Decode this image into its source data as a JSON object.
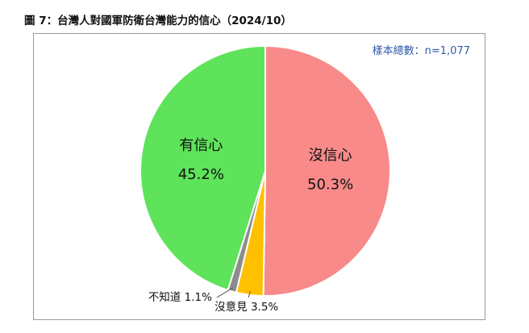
{
  "title": "圖 7：台灣人對國軍防衛台灣能力的信心（2024/10）",
  "sample_note": "樣本總數：n=1,077",
  "chart_data": {
    "type": "pie",
    "title": "圖 7：台灣人對國軍防衛台灣能力的信心（2024/10）",
    "start": "12 o'clock",
    "direction": "clockwise",
    "slices": [
      {
        "name": "沒信心",
        "value": 50.3,
        "value_label": "50.3%",
        "color": "#f88a8a"
      },
      {
        "name": "沒意見",
        "value": 3.5,
        "value_label": "3.5%",
        "color": "#ffc000"
      },
      {
        "name": "不知道",
        "value": 1.1,
        "value_label": "1.1%",
        "color": "#8c8c8c"
      },
      {
        "name": "有信心",
        "value": 45.2,
        "value_label": "45.2%",
        "color": "#5ee35a"
      }
    ]
  }
}
